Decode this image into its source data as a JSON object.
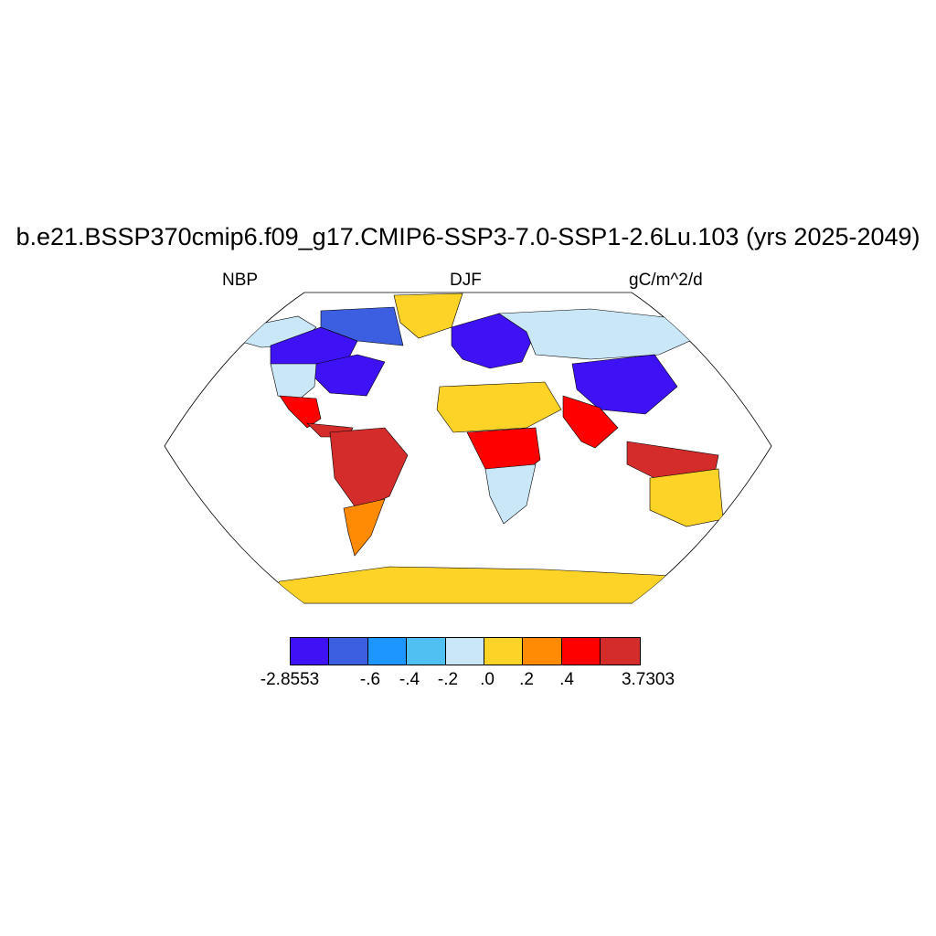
{
  "figure": {
    "title": "b.e21.BSSP370cmip6.f09_g17.CMIP6-SSP3-7.0-SSP1-2.6Lu.103 (yrs 2025-2049)",
    "left_label": "NBP",
    "center_label": "DJF",
    "right_label": "gC/m^2/d"
  },
  "colorbar": {
    "colors": [
      "#3f11f5",
      "#3c5ee0",
      "#1e96ff",
      "#50c0f2",
      "#c9e7f7",
      "#fed327",
      "#ff8a04",
      "#ff0000",
      "#d42b2b"
    ],
    "tick_labels": [
      "-2.8553",
      "-.6",
      "-.4",
      "-.2",
      ".0",
      ".2",
      ".4",
      "3.7303"
    ]
  },
  "map": {
    "projection": "Robinson",
    "regions": [
      {
        "name": "alaska",
        "class": 4
      },
      {
        "name": "canada-west",
        "class": 0
      },
      {
        "name": "canada-east",
        "class": 1
      },
      {
        "name": "usa-east",
        "class": 0
      },
      {
        "name": "usa-west",
        "class": 4
      },
      {
        "name": "mexico",
        "class": 7
      },
      {
        "name": "central-america",
        "class": 8
      },
      {
        "name": "greenland",
        "class": 5
      },
      {
        "name": "amazon",
        "class": 8
      },
      {
        "name": "south-america-south",
        "class": 6
      },
      {
        "name": "europe",
        "class": 0
      },
      {
        "name": "siberia",
        "class": 4
      },
      {
        "name": "china",
        "class": 0
      },
      {
        "name": "sahara",
        "class": 5
      },
      {
        "name": "central-africa",
        "class": 7
      },
      {
        "name": "south-africa",
        "class": 4
      },
      {
        "name": "india-se-asia",
        "class": 7
      },
      {
        "name": "indonesia",
        "class": 8
      },
      {
        "name": "australia",
        "class": 5
      },
      {
        "name": "antarctica",
        "class": 5
      }
    ]
  }
}
